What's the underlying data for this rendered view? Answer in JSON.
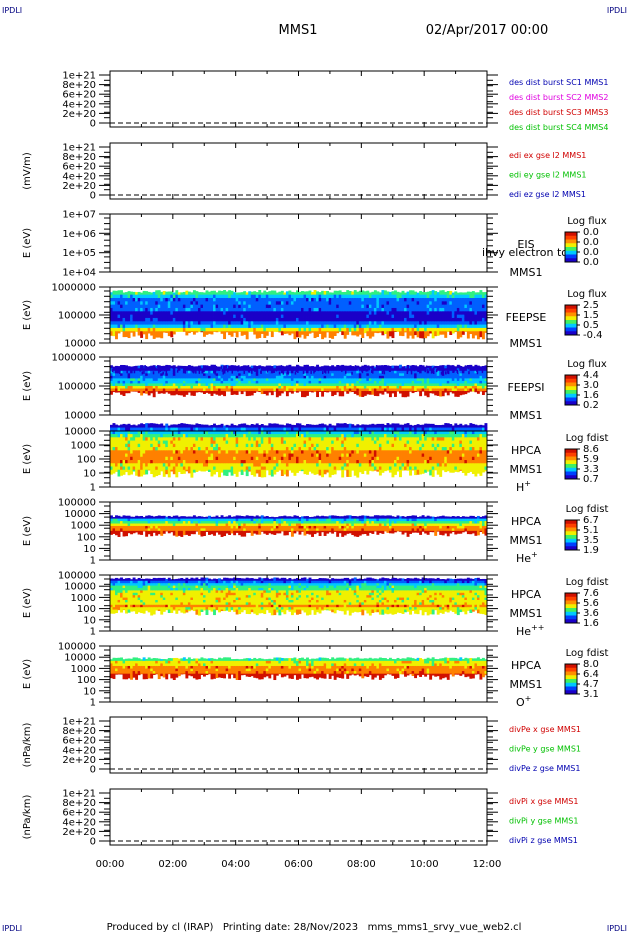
{
  "corners": {
    "top_left": "IPDLI",
    "top_right": "IPDLI",
    "bottom_left": "IPDLI",
    "bottom_right": "IPDLI"
  },
  "header": {
    "spacecraft": "MMS1",
    "date": "02/Apr/2017 00:00"
  },
  "footer": {
    "text": "Produced by cl (IRAP)   Printing date: 28/Nov/2023   mms_mms1_srvy_vue_web2.cl"
  },
  "colors": {
    "spectrogram_palette": [
      "#1a00c8",
      "#0060ff",
      "#00c8ff",
      "#30f080",
      "#f0f000",
      "#ff8000",
      "#d01000"
    ],
    "sc1": "#0000b0",
    "sc2": "#e000e0",
    "sc3": "#d00000",
    "sc4": "#00c000",
    "x_comp": "#d00000",
    "y_comp": "#00c000",
    "z_comp": "#0000b0"
  },
  "chart_data": [
    {
      "type": "line",
      "name": "des_dist",
      "ylabel": "",
      "ylim": [
        0,
        1e+21
      ],
      "yticks": [
        "1e+21",
        "8e+20",
        "6e+20",
        "4e+20",
        "2e+20",
        "0"
      ],
      "legend": [
        "des dist burst SC1 MMS1",
        "des dist burst SC2 MMS2",
        "des dist burst SC3 MMS3",
        "des dist burst SC4 MMS4"
      ],
      "series": []
    },
    {
      "type": "line",
      "name": "edi",
      "ylabel": "(mV/m)",
      "ylim": [
        0,
        1e+21
      ],
      "yticks": [
        "1e+21",
        "8e+20",
        "6e+20",
        "4e+20",
        "2e+20",
        "0"
      ],
      "legend": [
        "edi ex gse l2 MMS1",
        "edi ey gse l2 MMS1",
        "edi ez gse l2 MMS1"
      ],
      "series": []
    },
    {
      "type": "heatmap",
      "name": "eis",
      "ylabel": "E (eV)",
      "yscale": "log",
      "ylim": [
        10000,
        10000000
      ],
      "yticks": [
        "1e+07",
        "1e+06",
        "1e+05",
        "1e+04"
      ],
      "side_labels": [
        "EIS",
        "MMS1"
      ],
      "overlay_text": "ihvy electron to",
      "colorbar": {
        "title": "Log flux",
        "ticks": [
          "0.0",
          "0.0",
          "0.0",
          "0.0"
        ]
      },
      "data": "empty"
    },
    {
      "type": "heatmap",
      "name": "feeps_e",
      "ylabel": "E (eV)",
      "yscale": "log",
      "ylim": [
        10000,
        1000000
      ],
      "yticks": [
        "1000000",
        "100000",
        "10000"
      ],
      "side_labels": [
        "FEEPSE",
        "MMS1"
      ],
      "colorbar": {
        "title": "Log flux",
        "ticks": [
          "2.5",
          "1.5",
          "0.5",
          "-0.4"
        ]
      }
    },
    {
      "type": "heatmap",
      "name": "feeps_i",
      "ylabel": "E (eV)",
      "yscale": "log",
      "ylim": [
        10000,
        1000000
      ],
      "yticks": [
        "1000000",
        "100000",
        "10000"
      ],
      "side_labels": [
        "FEEPSI",
        "MMS1"
      ],
      "colorbar": {
        "title": "Log flux",
        "ticks": [
          "4.4",
          "3.0",
          "1.6",
          "0.2"
        ]
      }
    },
    {
      "type": "heatmap",
      "name": "hpca_h",
      "ylabel": "E (eV)",
      "yscale": "log",
      "ylim": [
        1,
        10000
      ],
      "yticks": [
        "10000",
        "1000",
        "100",
        "10",
        "1"
      ],
      "side_labels": [
        "HPCA",
        "MMS1",
        "H+"
      ],
      "colorbar": {
        "title": "Log fdist",
        "ticks": [
          "8.6",
          "5.9",
          "3.3",
          "0.7"
        ]
      }
    },
    {
      "type": "heatmap",
      "name": "hpca_he",
      "ylabel": "E (eV)",
      "yscale": "log",
      "ylim": [
        1,
        100000
      ],
      "yticks": [
        "100000",
        "10000",
        "1000",
        "100",
        "10",
        "1"
      ],
      "side_labels": [
        "HPCA",
        "MMS1",
        "He+"
      ],
      "colorbar": {
        "title": "Log fdist",
        "ticks": [
          "6.7",
          "5.1",
          "3.5",
          "1.9"
        ]
      }
    },
    {
      "type": "heatmap",
      "name": "hpca_hepp",
      "ylabel": "E (eV)",
      "yscale": "log",
      "ylim": [
        1,
        100000
      ],
      "yticks": [
        "100000",
        "10000",
        "1000",
        "100",
        "10",
        "1"
      ],
      "side_labels": [
        "HPCA",
        "MMS1",
        "He++"
      ],
      "colorbar": {
        "title": "Log fdist",
        "ticks": [
          "7.6",
          "5.6",
          "3.6",
          "1.6"
        ]
      }
    },
    {
      "type": "heatmap",
      "name": "hpca_o",
      "ylabel": "E (eV)",
      "yscale": "log",
      "ylim": [
        1,
        100000
      ],
      "yticks": [
        "100000",
        "10000",
        "1000",
        "100",
        "10",
        "1"
      ],
      "side_labels": [
        "HPCA",
        "MMS1",
        "O+"
      ],
      "colorbar": {
        "title": "Log fdist",
        "ticks": [
          "8.0",
          "6.4",
          "4.7",
          "3.1"
        ]
      }
    },
    {
      "type": "line",
      "name": "divpe",
      "ylabel": "(nPa/km)",
      "ylim": [
        0,
        1e+21
      ],
      "yticks": [
        "1e+21",
        "8e+20",
        "6e+20",
        "4e+20",
        "2e+20",
        "0"
      ],
      "legend": [
        "divPe x gse MMS1",
        "divPe y gse MMS1",
        "divPe z gse MMS1"
      ],
      "series": []
    },
    {
      "type": "line",
      "name": "divpi",
      "ylabel": "(nPa/km)",
      "ylim": [
        0,
        1e+21
      ],
      "yticks": [
        "1e+21",
        "8e+20",
        "6e+20",
        "4e+20",
        "2e+20",
        "0"
      ],
      "legend": [
        "divPi x gse MMS1",
        "divPi y gse MMS1",
        "divPi z gse MMS1"
      ],
      "series": []
    }
  ],
  "x_axis": {
    "ticks": [
      "00:00",
      "02:00",
      "04:00",
      "06:00",
      "08:00",
      "10:00",
      "12:00"
    ],
    "range_hours": [
      0,
      12
    ]
  }
}
